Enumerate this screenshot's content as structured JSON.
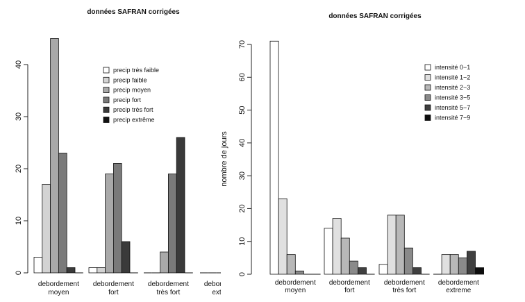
{
  "chart_data": [
    {
      "type": "bar",
      "title": "données SAFRAN corrigées",
      "ylabel": "",
      "xlabel": "",
      "ylim": [
        0,
        46
      ],
      "yticks": [
        0,
        10,
        20,
        30,
        40
      ],
      "grid": false,
      "legend_position": "top-right",
      "categories": [
        [
          "debordement",
          "moyen"
        ],
        [
          "debordement",
          "fort"
        ],
        [
          "debordement",
          "très fort"
        ],
        [
          "debordement",
          "extreme"
        ]
      ],
      "series": [
        {
          "name": "precip très faible",
          "color": "#ffffff",
          "values": [
            3,
            1,
            0,
            0
          ]
        },
        {
          "name": "precip faible",
          "color": "#d3d3d3",
          "values": [
            17,
            1,
            0,
            0
          ]
        },
        {
          "name": "precip moyen",
          "color": "#a9a9a9",
          "values": [
            45,
            19,
            4,
            0
          ]
        },
        {
          "name": "precip fort",
          "color": "#7a7a7a",
          "values": [
            23,
            21,
            19,
            0
          ]
        },
        {
          "name": "precip très fort",
          "color": "#3a3a3a",
          "values": [
            1,
            6,
            26,
            0
          ]
        },
        {
          "name": "precip extrême",
          "color": "#111111",
          "values": [
            0,
            0,
            0,
            0
          ]
        }
      ]
    },
    {
      "type": "bar",
      "title": "données SAFRAN corrigées",
      "ylabel": "nombre de jours",
      "xlabel": "",
      "ylim": [
        0,
        72
      ],
      "yticks": [
        0,
        10,
        20,
        30,
        40,
        50,
        60,
        70
      ],
      "grid": false,
      "legend_position": "top-right",
      "categories": [
        [
          "debordement",
          "moyen"
        ],
        [
          "debordement",
          "fort"
        ],
        [
          "debordement",
          "très fort"
        ],
        [
          "debordement",
          "extreme"
        ]
      ],
      "series": [
        {
          "name": "intensité 0−1",
          "color": "#ffffff",
          "values": [
            71,
            14,
            3,
            0
          ]
        },
        {
          "name": "intensité 1−2",
          "color": "#e0e0e0",
          "values": [
            23,
            17,
            18,
            6
          ]
        },
        {
          "name": "intensité 2−3",
          "color": "#b8b8b8",
          "values": [
            6,
            11,
            18,
            6
          ]
        },
        {
          "name": "intensité 3−5",
          "color": "#8a8a8a",
          "values": [
            1,
            4,
            8,
            5
          ]
        },
        {
          "name": "intensité 5−7",
          "color": "#3f3f3f",
          "values": [
            0,
            2,
            2,
            7
          ]
        },
        {
          "name": "intensité 7−9",
          "color": "#0d0d0d",
          "values": [
            0,
            0,
            0,
            2
          ]
        }
      ]
    }
  ]
}
